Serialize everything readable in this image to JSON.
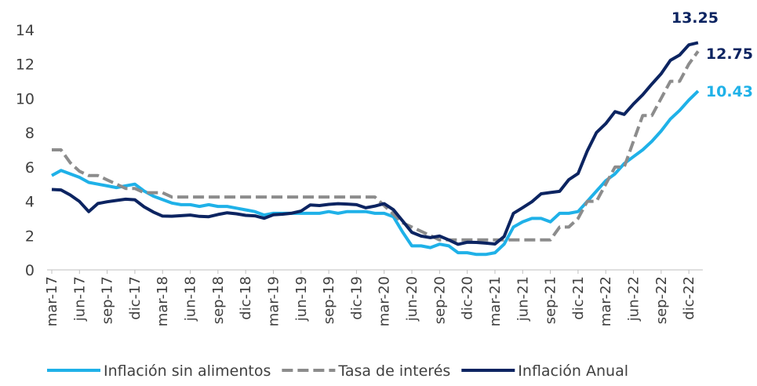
{
  "chart_data": {
    "type": "line",
    "categories": [
      "mar-17",
      null,
      null,
      "jun-17",
      null,
      null,
      "sep-17",
      null,
      null,
      "dic-17",
      null,
      null,
      "mar-18",
      null,
      null,
      "jun-18",
      null,
      null,
      "sep-18",
      null,
      null,
      "dic-18",
      null,
      null,
      "mar-19",
      null,
      null,
      "jun-19",
      null,
      null,
      "sep-19",
      null,
      null,
      "dic-19",
      null,
      null,
      "mar-20",
      null,
      null,
      "jun-20",
      null,
      null,
      "sep-20",
      null,
      null,
      "dic-20",
      null,
      null,
      "mar-21",
      null,
      null,
      "jun-21",
      null,
      null,
      "sep-21",
      null,
      null,
      "dic-21",
      null,
      null,
      "mar-22",
      null,
      null,
      "jun-22",
      null,
      null,
      "sep-22",
      null,
      null,
      "dic-22",
      null
    ],
    "series": [
      {
        "name": "Inflación sin alimentos",
        "color": "#1fb1e8",
        "dash": false,
        "values": [
          5.5,
          5.8,
          5.6,
          5.4,
          5.1,
          5.0,
          4.9,
          4.8,
          4.9,
          5.0,
          4.6,
          4.3,
          4.1,
          3.9,
          3.8,
          3.8,
          3.7,
          3.8,
          3.7,
          3.7,
          3.6,
          3.5,
          3.4,
          3.2,
          3.3,
          3.3,
          3.3,
          3.3,
          3.3,
          3.3,
          3.4,
          3.3,
          3.4,
          3.4,
          3.4,
          3.3,
          3.3,
          3.1,
          2.2,
          1.4,
          1.4,
          1.3,
          1.5,
          1.4,
          1.0,
          1.0,
          0.9,
          0.9,
          1.0,
          1.5,
          2.5,
          2.8,
          3.0,
          3.0,
          2.8,
          3.3,
          3.3,
          3.4,
          4.0,
          4.6,
          5.2,
          5.6,
          6.2,
          6.6,
          7.0,
          7.5,
          8.1,
          8.8,
          9.3,
          9.9,
          10.43
        ]
      },
      {
        "name": "Tasa de interés",
        "color": "#8c8c8c",
        "dash": true,
        "values": [
          7.0,
          7.0,
          6.25,
          5.75,
          5.5,
          5.5,
          5.25,
          5.0,
          4.75,
          4.75,
          4.5,
          4.5,
          4.5,
          4.25,
          4.25,
          4.25,
          4.25,
          4.25,
          4.25,
          4.25,
          4.25,
          4.25,
          4.25,
          4.25,
          4.25,
          4.25,
          4.25,
          4.25,
          4.25,
          4.25,
          4.25,
          4.25,
          4.25,
          4.25,
          4.25,
          4.25,
          3.75,
          3.25,
          2.75,
          2.5,
          2.25,
          2.0,
          1.75,
          1.75,
          1.75,
          1.75,
          1.75,
          1.75,
          1.75,
          1.75,
          1.75,
          1.75,
          1.75,
          1.75,
          1.75,
          2.5,
          2.5,
          3.0,
          4.0,
          4.0,
          5.0,
          6.0,
          6.0,
          7.5,
          9.0,
          9.0,
          10.0,
          11.0,
          11.0,
          12.0,
          12.75
        ]
      },
      {
        "name": "Inflación Anual",
        "color": "#0c2461",
        "dash": false,
        "values": [
          4.69,
          4.66,
          4.37,
          3.99,
          3.4,
          3.87,
          3.97,
          4.05,
          4.12,
          4.09,
          3.68,
          3.37,
          3.14,
          3.13,
          3.16,
          3.2,
          3.12,
          3.1,
          3.23,
          3.33,
          3.27,
          3.18,
          3.15,
          3.01,
          3.21,
          3.25,
          3.31,
          3.43,
          3.79,
          3.75,
          3.82,
          3.86,
          3.84,
          3.8,
          3.62,
          3.72,
          3.86,
          3.51,
          2.85,
          2.19,
          1.97,
          1.88,
          1.97,
          1.75,
          1.49,
          1.61,
          1.6,
          1.56,
          1.51,
          1.95,
          3.3,
          3.63,
          3.97,
          4.44,
          4.51,
          4.58,
          5.26,
          5.62,
          6.94,
          8.01,
          8.53,
          9.23,
          9.07,
          9.67,
          10.21,
          10.84,
          11.44,
          12.22,
          12.53,
          13.12,
          13.25
        ]
      }
    ],
    "ylim": [
      0,
      14
    ],
    "yticks": [
      0,
      2,
      4,
      6,
      8,
      10,
      12,
      14
    ],
    "legend": "bottom"
  }
}
